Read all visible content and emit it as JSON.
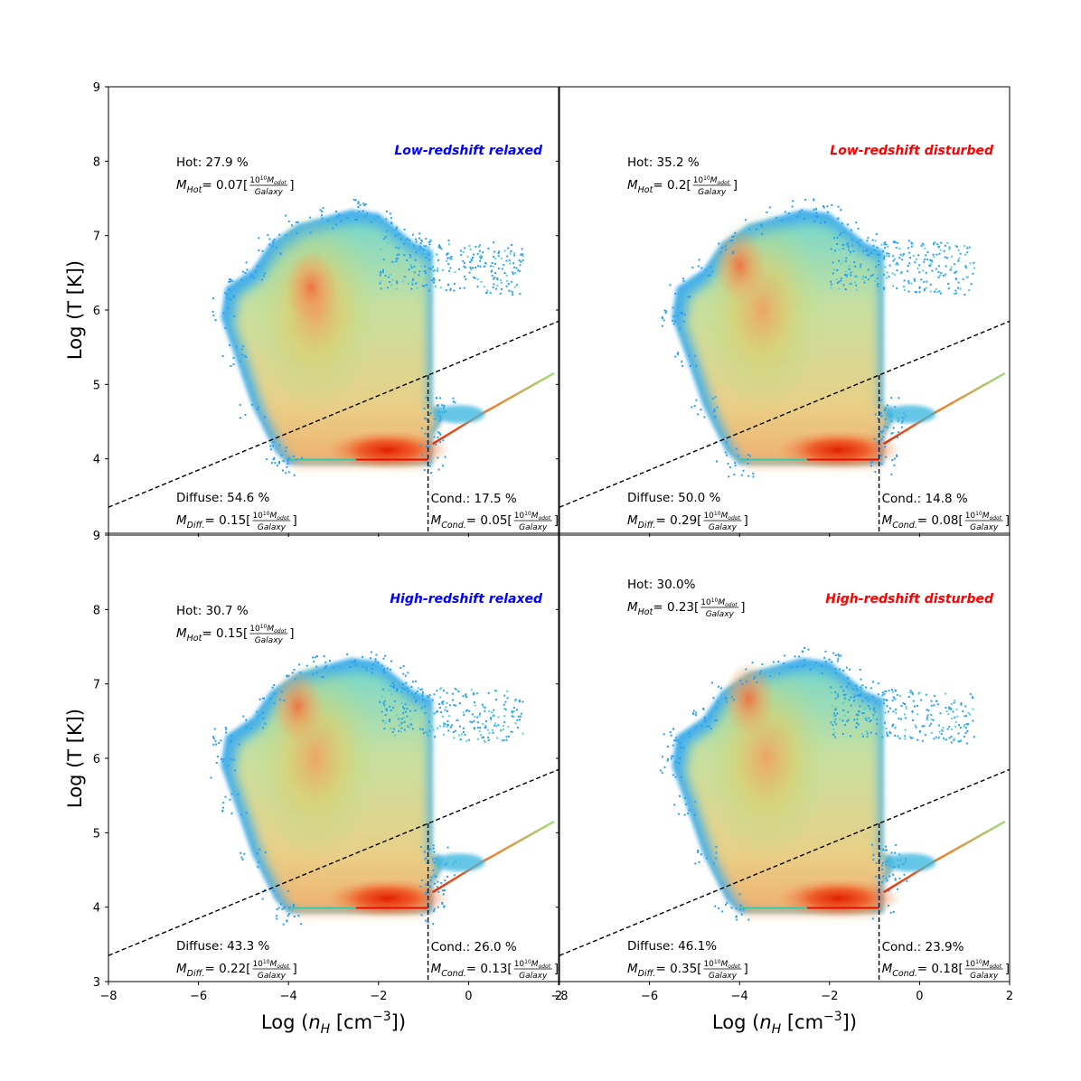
{
  "chart_data": {
    "type": "heatmap",
    "x_label": "Log (n_H [cm^-3])",
    "y_label": "Log (T [K])",
    "xlim": [
      -8,
      2
    ],
    "ylim": [
      3,
      9
    ],
    "x_ticks": [
      "−8",
      "−6",
      "−4",
      "−2",
      "0",
      "2"
    ],
    "y_ticks": [
      "3",
      "4",
      "5",
      "6",
      "7",
      "8",
      "9"
    ],
    "colors": {
      "relaxed": "#0000ff",
      "disturbed": "#ff0000"
    },
    "panels": [
      {
        "title": "Low-redshift relaxed",
        "category": "relaxed",
        "hot": {
          "label": "Hot: 27.9 %",
          "mass_prefix": "= 0.07["
        },
        "diffuse": {
          "label": "Diffuse: 54.6 %",
          "mass_prefix": "= 0.15["
        },
        "cond": {
          "label": "Cond.: 17.5 %",
          "mass_prefix": "= 0.05["
        },
        "peak": [
          -3.4,
          6.0
        ],
        "hot_blob": [
          -3.5,
          6.3
        ]
      },
      {
        "title": "Low-redshift disturbed",
        "category": "disturbed",
        "hot": {
          "label": "Hot: 35.2 %",
          "mass_prefix": "= 0.2["
        },
        "diffuse": {
          "label": "Diffuse: 50.0 %",
          "mass_prefix": "= 0.29["
        },
        "cond": {
          "label": "Cond.: 14.8 %",
          "mass_prefix": "= 0.08["
        },
        "peak": [
          -3.5,
          6.0
        ],
        "hot_blob": [
          -4.0,
          6.6
        ]
      },
      {
        "title": "High-redshift relaxed",
        "category": "relaxed",
        "hot": {
          "label": "Hot: 30.7 %",
          "mass_prefix": "= 0.15["
        },
        "diffuse": {
          "label": "Diffuse: 43.3 %",
          "mass_prefix": "= 0.22["
        },
        "cond": {
          "label": "Cond.: 26.0 %",
          "mass_prefix": "= 0.13["
        },
        "peak": [
          -3.4,
          6.0
        ],
        "hot_blob": [
          -3.8,
          6.7
        ]
      },
      {
        "title": "High-redshift disturbed",
        "category": "disturbed",
        "hot": {
          "label": "Hot: 30.0%",
          "mass_prefix": "= 0.23["
        },
        "diffuse": {
          "label": "Diffuse: 46.1%",
          "mass_prefix": "= 0.35["
        },
        "cond": {
          "label": "Cond.: 23.9%",
          "mass_prefix": "= 0.18["
        },
        "peak": [
          -3.4,
          6.0
        ],
        "hot_blob": [
          -3.8,
          6.8
        ]
      }
    ],
    "cuts": {
      "diagonal_line": {
        "x": [
          -8,
          2
        ],
        "y": [
          3.35,
          5.85
        ]
      },
      "density_cut_x": -0.9
    },
    "mass_units": {
      "hot_sub": "Hot",
      "diffuse_sub": "Diff.",
      "cond_sub": "Cond.",
      "unit_num": "10",
      "unit_exp": "10",
      "unit_sym": "M",
      "unit_sub": "odot",
      "unit_den": "Galaxy",
      "m": "M",
      "close": "]"
    }
  }
}
